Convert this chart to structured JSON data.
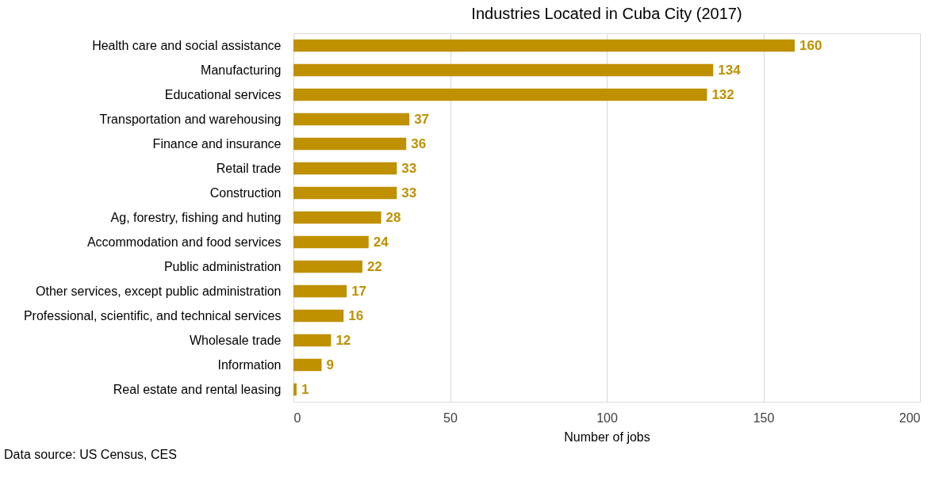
{
  "chart_data": {
    "type": "bar",
    "orientation": "horizontal",
    "title": "Industries Located in Cuba City (2017)",
    "xlabel": "Number of jobs",
    "categories": [
      "Health care and social assistance",
      "Manufacturing",
      "Educational services",
      "Transportation and warehousing",
      "Finance and insurance",
      "Retail trade",
      "Construction",
      "Ag, forestry, fishing and huting",
      "Accommodation and food services",
      "Public administration",
      "Other services, except public administration",
      "Professional, scientific, and technical services",
      "Wholesale trade",
      "Information",
      "Real estate and rental leasing"
    ],
    "values": [
      160,
      134,
      132,
      37,
      36,
      33,
      33,
      28,
      24,
      22,
      17,
      16,
      12,
      9,
      1
    ],
    "color": "#bf9000",
    "xlim": [
      0,
      200
    ],
    "xticks": [
      0,
      50,
      100,
      150,
      200
    ],
    "grid": "x",
    "data_labels": true,
    "annotations": [
      "Data source: US Census, CES"
    ]
  }
}
